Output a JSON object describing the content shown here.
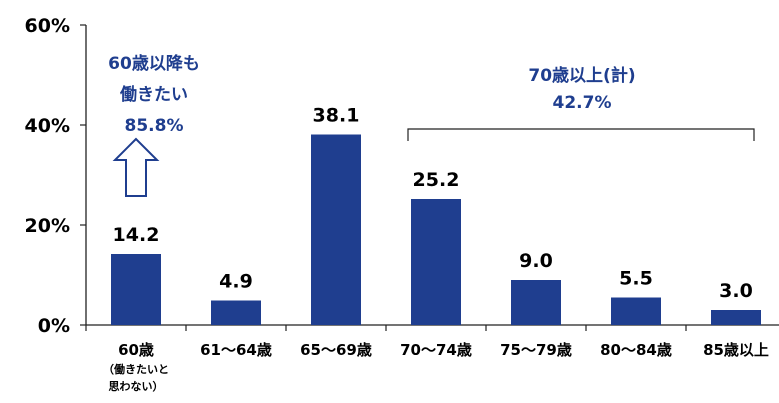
{
  "chart_data": {
    "type": "bar",
    "categories": [
      "60歳",
      "61～64歳",
      "65～69歳",
      "70～74歳",
      "75～79歳",
      "80～84歳",
      "85歳以上"
    ],
    "category_notes": [
      "（働きたいと",
      "思わない）"
    ],
    "values": [
      14.2,
      4.9,
      38.1,
      25.2,
      9.0,
      5.5,
      3.0
    ],
    "value_labels": [
      "14.2",
      "4.9",
      "38.1",
      "25.2",
      "9.0",
      "5.5",
      "3.0"
    ],
    "y_ticks": [
      "0%",
      "20%",
      "40%",
      "60%"
    ],
    "ylim": [
      0,
      60
    ],
    "bar_color": "#1f3e8f",
    "annotation_color": "#1f3e8f",
    "grid": false,
    "annotations": {
      "left": [
        "60歳以降も",
        "働きたい",
        "85.8%"
      ],
      "left_arrow": "up-arrow-icon",
      "right": [
        "70歳以上(計)",
        "42.7%"
      ]
    }
  }
}
